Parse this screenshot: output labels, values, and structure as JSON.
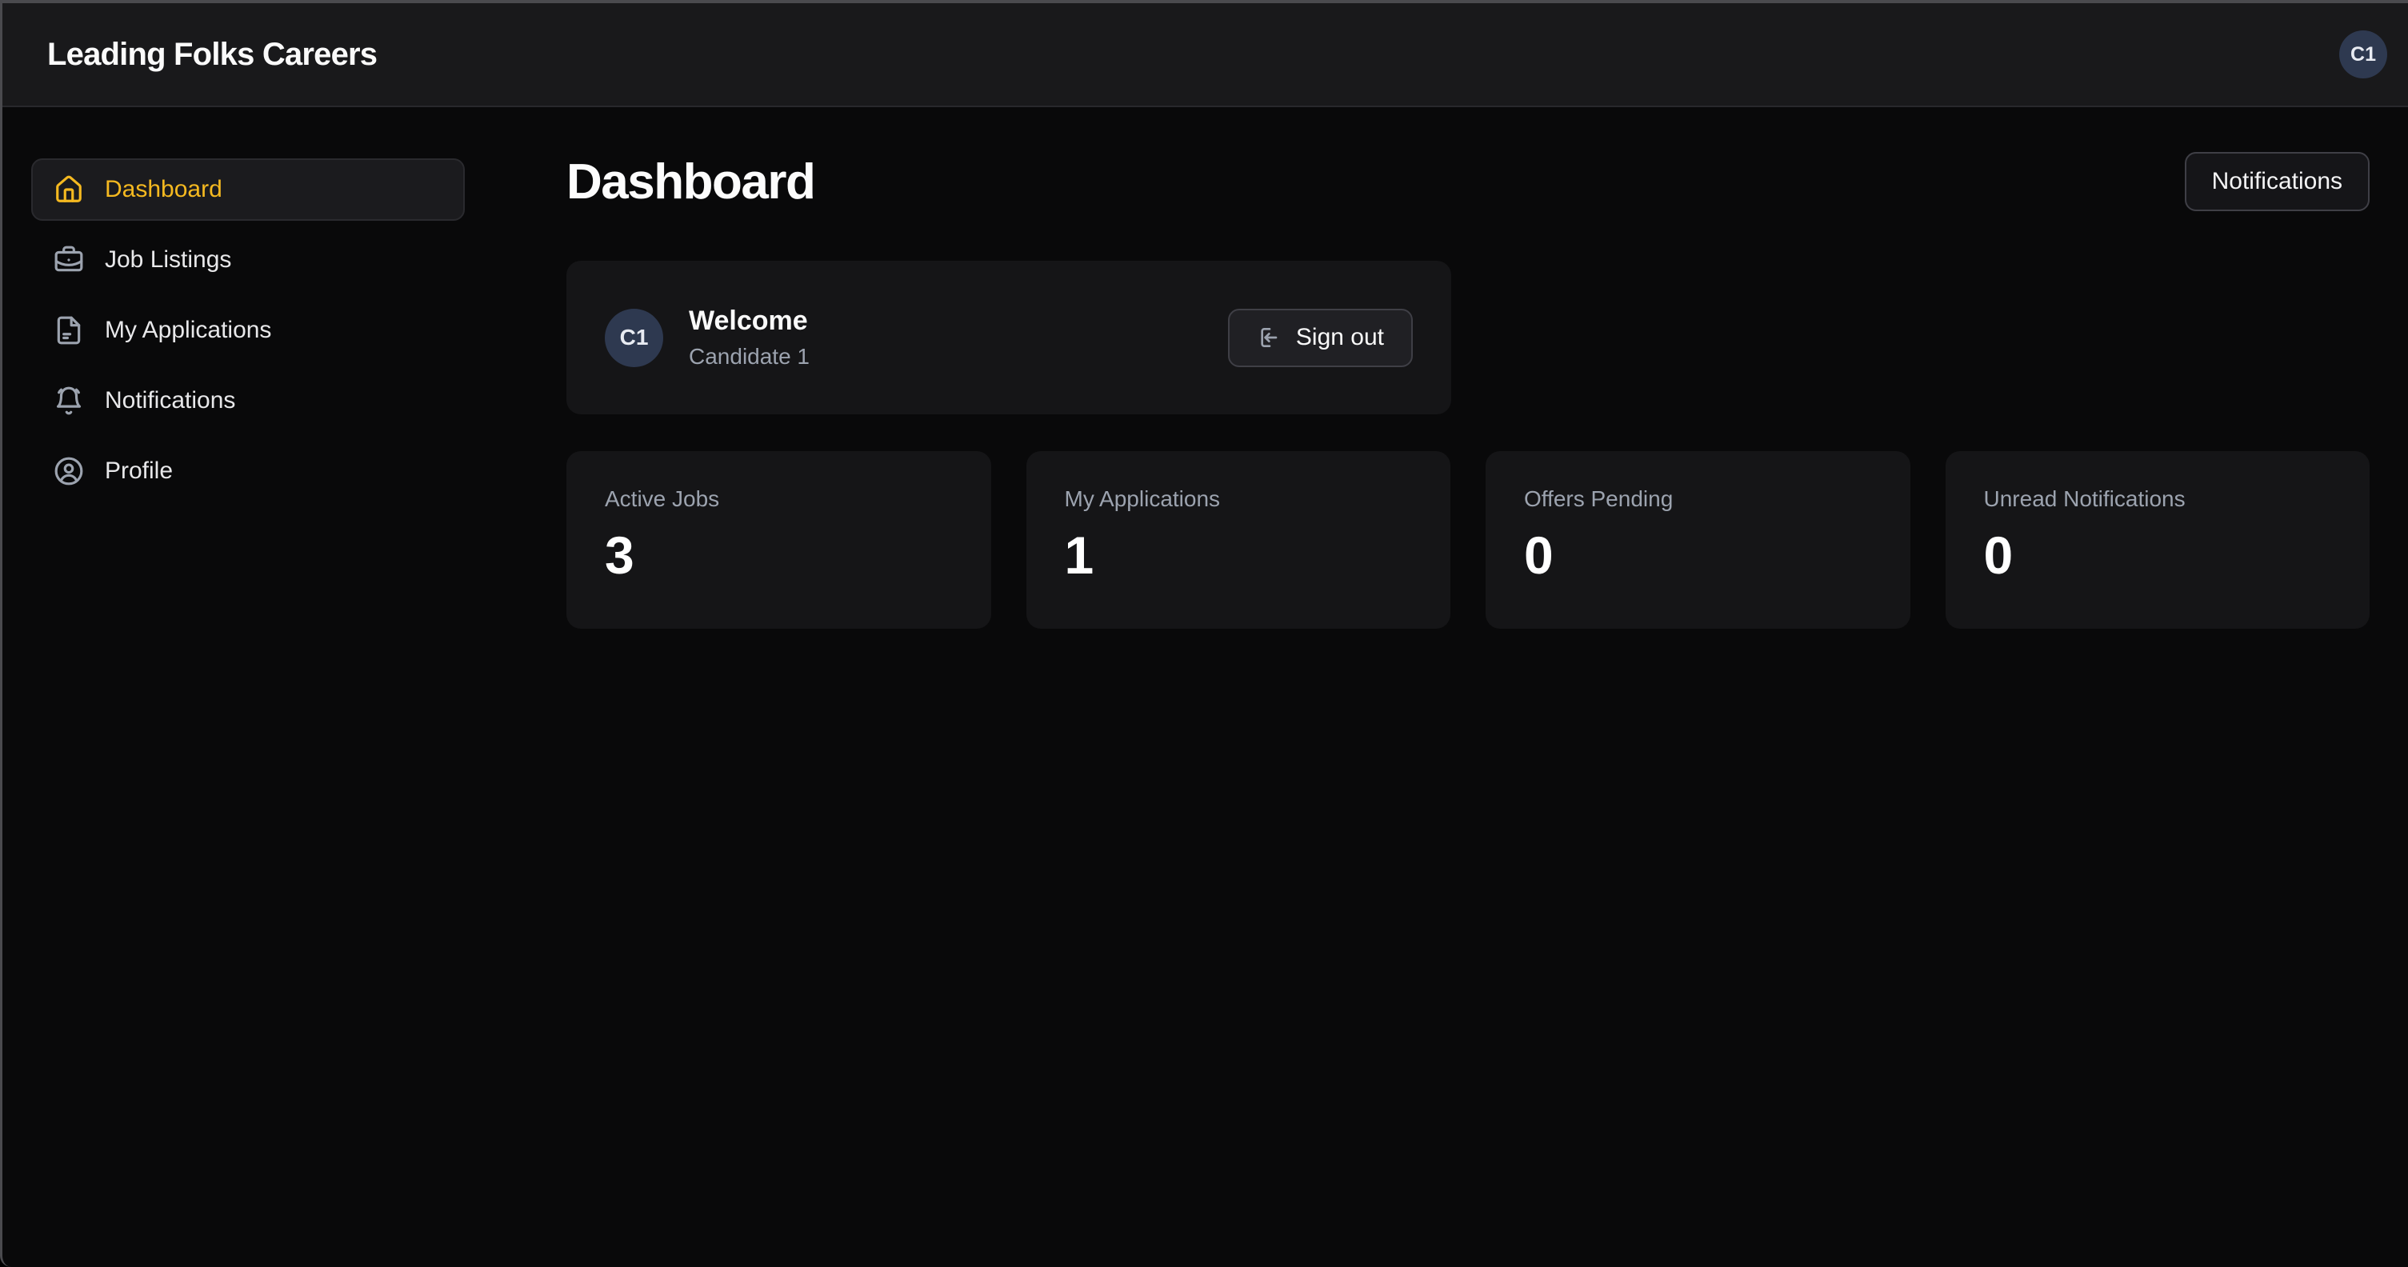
{
  "topbar": {
    "title": "Leading Folks Careers",
    "avatar_initials": "C1"
  },
  "sidebar": {
    "items": [
      {
        "label": "Dashboard",
        "icon": "home-icon",
        "active": true
      },
      {
        "label": "Job Listings",
        "icon": "briefcase-icon",
        "active": false
      },
      {
        "label": "My Applications",
        "icon": "document-icon",
        "active": false
      },
      {
        "label": "Notifications",
        "icon": "bell-icon",
        "active": false
      },
      {
        "label": "Profile",
        "icon": "user-icon",
        "active": false
      }
    ]
  },
  "main": {
    "page_title": "Dashboard",
    "notifications_button_label": "Notifications",
    "welcome_card": {
      "avatar_initials": "C1",
      "greeting": "Welcome",
      "user_name": "Candidate 1",
      "sign_out_label": "Sign out",
      "sign_out_icon": "log-out-icon"
    },
    "stat_cards": [
      {
        "label": "Active Jobs",
        "value": "3"
      },
      {
        "label": "My Applications",
        "value": "1"
      },
      {
        "label": "Offers Pending",
        "value": "0"
      },
      {
        "label": "Unread Notifications",
        "value": "0"
      }
    ]
  },
  "colors": {
    "accent": "#f5b920",
    "avatar_bg": "#2e3950",
    "card_bg": "#151517",
    "topbar_bg": "#19191b",
    "page_bg": "#09090a",
    "muted_text": "#9ca3af",
    "border": "#3f3f46"
  }
}
